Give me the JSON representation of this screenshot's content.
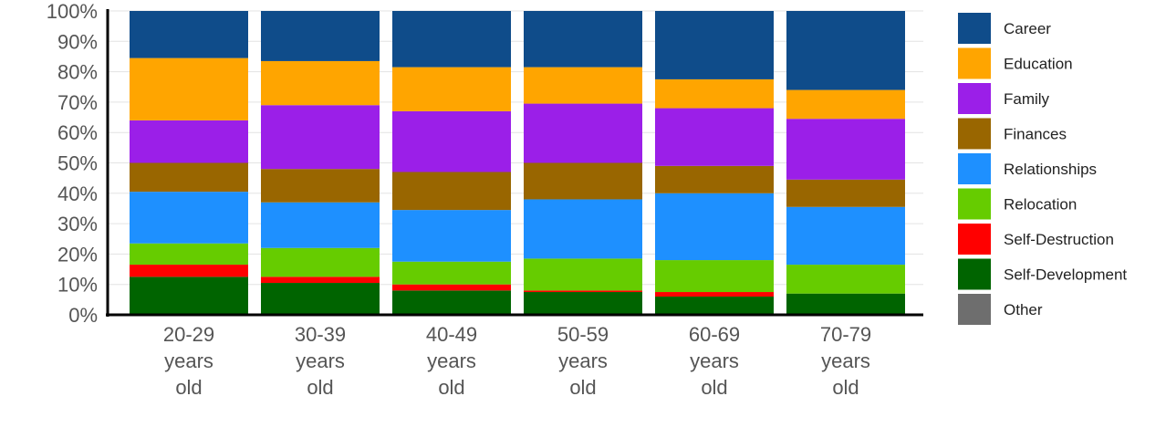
{
  "chart_data": {
    "type": "bar",
    "stacked": true,
    "normalized": true,
    "grid": true,
    "legend_position": "right",
    "ylim": [
      0,
      100
    ],
    "yticks": [
      "0%",
      "10%",
      "20%",
      "30%",
      "40%",
      "50%",
      "60%",
      "70%",
      "80%",
      "90%",
      "100%"
    ],
    "categories": [
      [
        "20-29",
        "years",
        "old"
      ],
      [
        "30-39",
        "years",
        "old"
      ],
      [
        "40-49",
        "years",
        "old"
      ],
      [
        "50-59",
        "years",
        "old"
      ],
      [
        "60-69",
        "years",
        "old"
      ],
      [
        "70-79",
        "years",
        "old"
      ]
    ],
    "series": [
      {
        "name": "Self-Development",
        "color": "#006400",
        "values": [
          12.5,
          10.5,
          8,
          7.5,
          6,
          7
        ]
      },
      {
        "name": "Self-Destruction",
        "color": "#ff0000",
        "values": [
          4,
          2,
          2,
          0.5,
          1.5,
          0
        ]
      },
      {
        "name": "Relocation",
        "color": "#66cc00",
        "values": [
          7,
          9.5,
          7.5,
          10.5,
          10.5,
          9.5
        ]
      },
      {
        "name": "Relationships",
        "color": "#1e90ff",
        "values": [
          17,
          15,
          17,
          19.5,
          22,
          19
        ]
      },
      {
        "name": "Finances",
        "color": "#996600",
        "values": [
          9.5,
          11,
          12.5,
          12,
          9,
          9
        ]
      },
      {
        "name": "Family",
        "color": "#9b1fe8",
        "values": [
          14,
          21,
          20,
          19.5,
          19,
          20
        ]
      },
      {
        "name": "Education",
        "color": "#ffa500",
        "values": [
          20.5,
          14.5,
          14.5,
          12,
          9.5,
          9.5
        ]
      },
      {
        "name": "Career",
        "color": "#0f4c8a",
        "values": [
          15.5,
          16.5,
          18.5,
          18.5,
          22.5,
          26
        ]
      },
      {
        "name": "Other",
        "color": "#6e6e6e",
        "values": [
          0,
          0,
          0,
          0,
          0,
          0
        ]
      }
    ],
    "legend_order": [
      "Career",
      "Education",
      "Family",
      "Finances",
      "Relationships",
      "Relocation",
      "Self-Destruction",
      "Self-Development",
      "Other"
    ]
  }
}
